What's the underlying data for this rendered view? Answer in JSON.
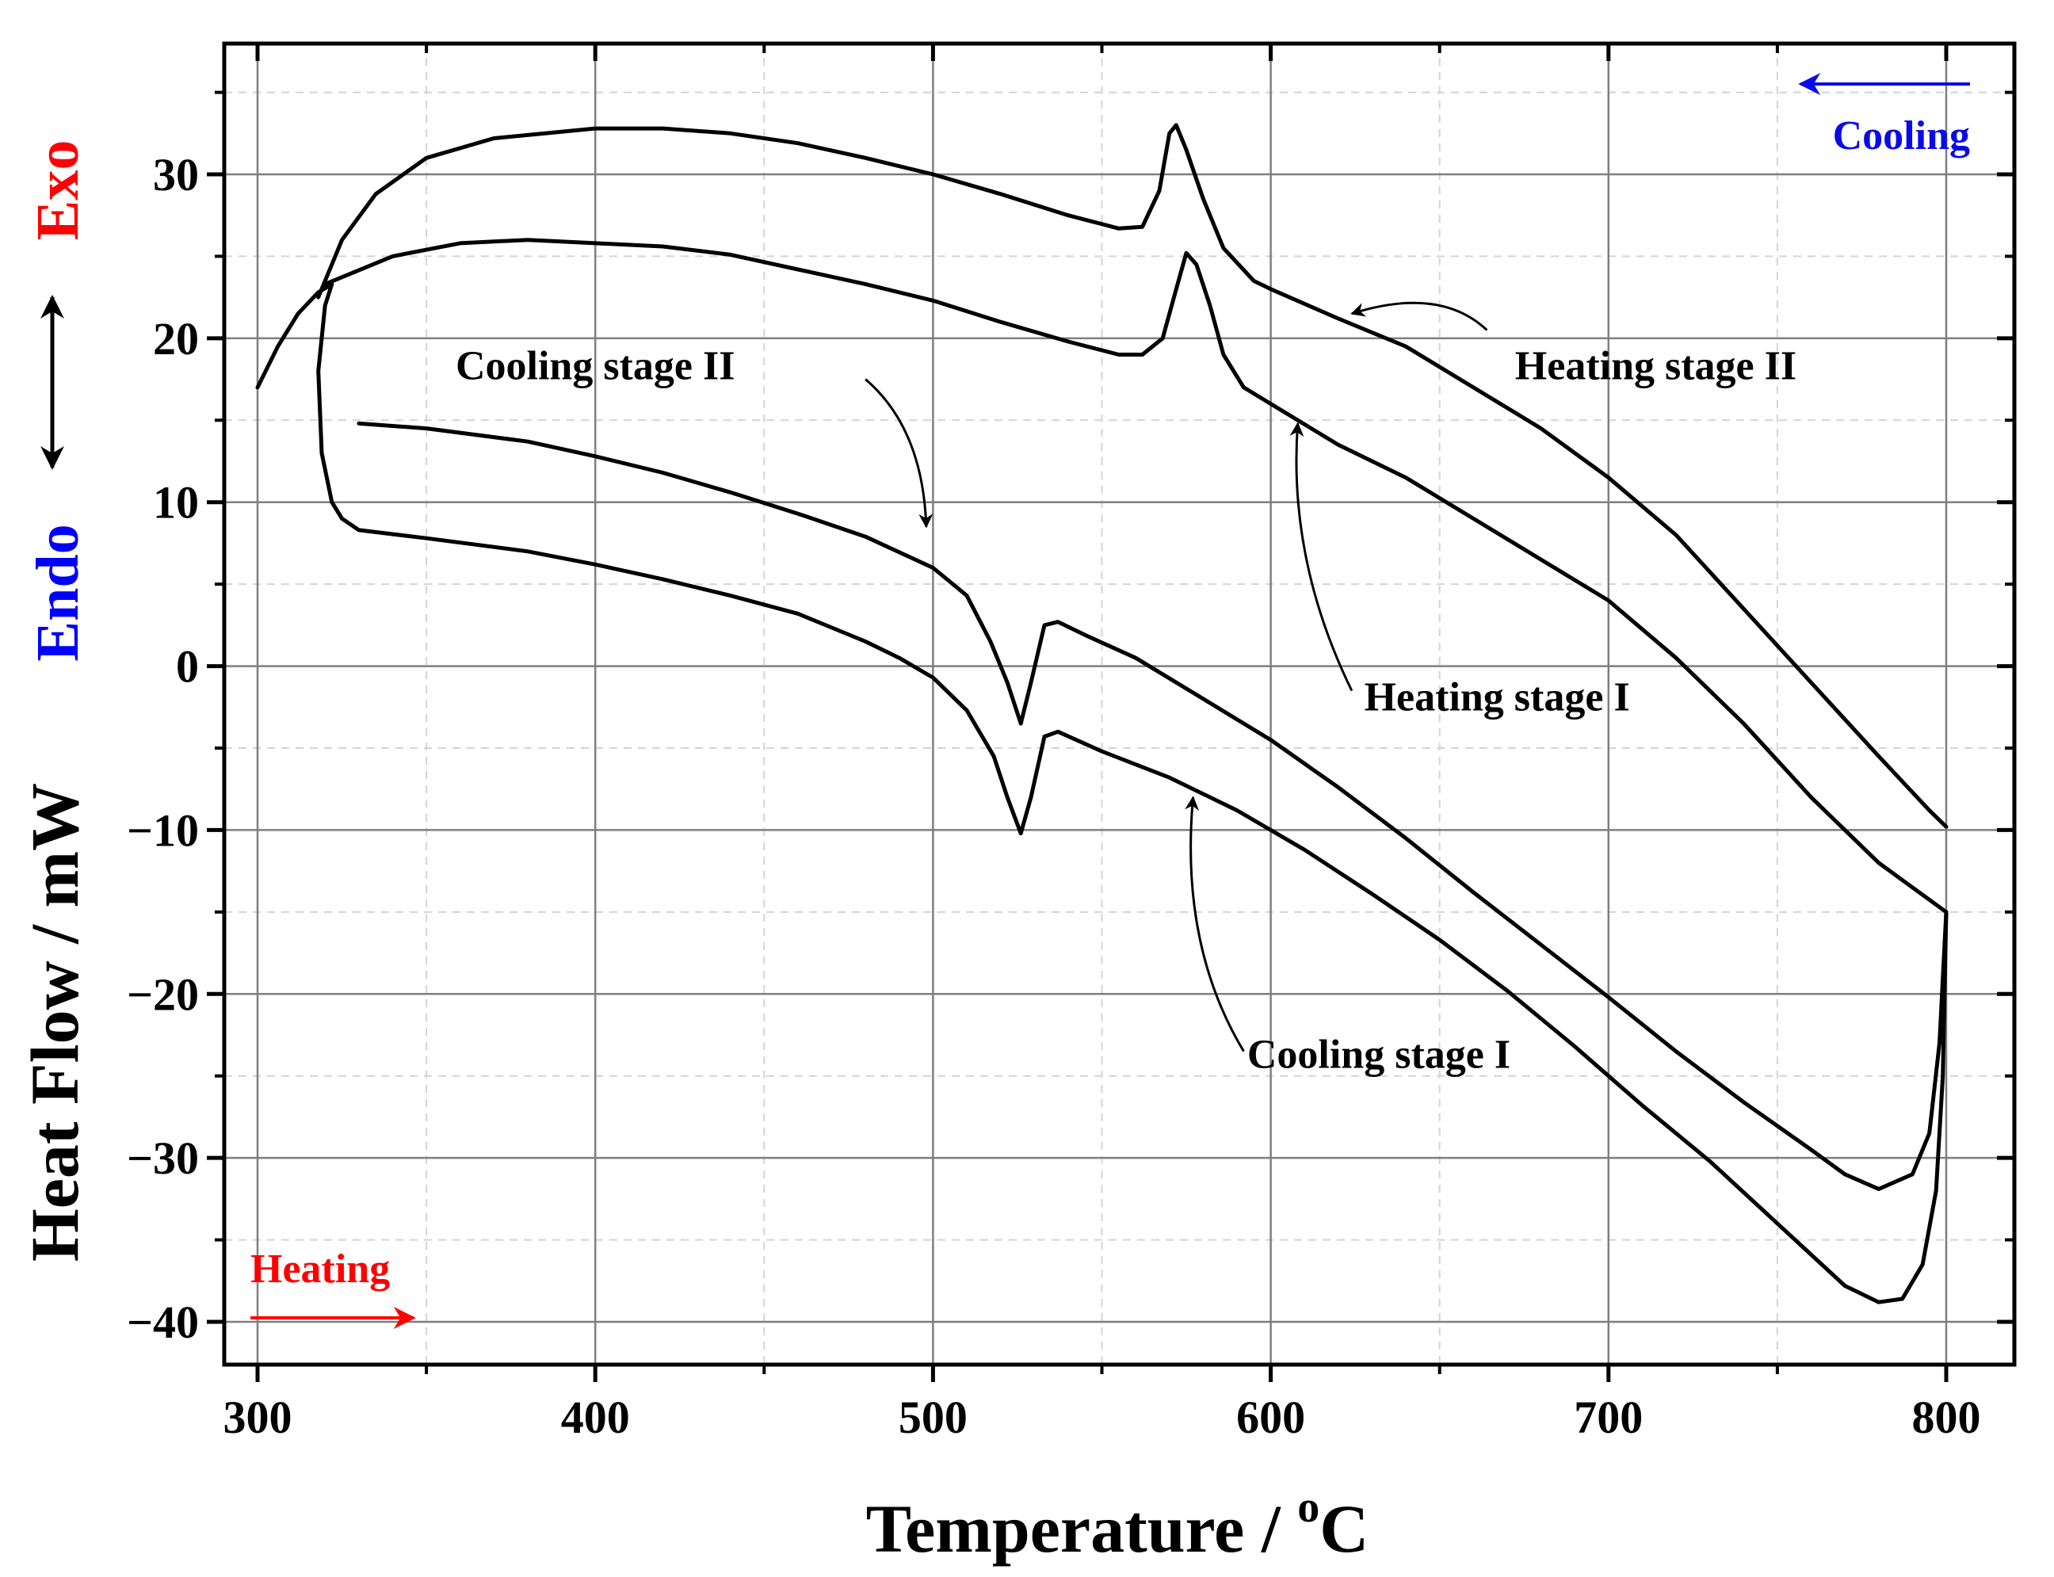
{
  "chart_data": {
    "type": "line",
    "title": "",
    "xlabel": "Temperature / °C",
    "xlabel_main": "Temperature / ",
    "xlabel_sup": "o",
    "xlabel_unit": "C",
    "ylabel": "Heat Flow / mW",
    "xlim": [
      290,
      820
    ],
    "ylim": [
      -42,
      38
    ],
    "xticks": [
      300,
      400,
      500,
      600,
      700,
      800
    ],
    "yticks": [
      30,
      20,
      10,
      0,
      -10,
      -20,
      -30,
      -40
    ],
    "ytick_labels": [
      "30",
      "20",
      "10",
      "0",
      "−10",
      "−20",
      "−30",
      "−40"
    ],
    "grid": true,
    "series": [
      {
        "name": "Cooling stage II",
        "points": [
          [
            330,
            14.8
          ],
          [
            350,
            14.5
          ],
          [
            380,
            13.7
          ],
          [
            400,
            12.8
          ],
          [
            420,
            11.8
          ],
          [
            440,
            10.6
          ],
          [
            460,
            9.3
          ],
          [
            480,
            7.9
          ],
          [
            500,
            6.0
          ],
          [
            510,
            4.3
          ],
          [
            517,
            1.5
          ],
          [
            522,
            -1.0
          ],
          [
            526,
            -3.5
          ],
          [
            529,
            -1.0
          ],
          [
            533,
            2.5
          ],
          [
            537,
            2.7
          ],
          [
            545,
            1.9
          ],
          [
            560,
            0.5
          ],
          [
            580,
            -2.0
          ],
          [
            600,
            -4.5
          ],
          [
            620,
            -7.4
          ],
          [
            640,
            -10.5
          ],
          [
            660,
            -13.8
          ],
          [
            680,
            -17.0
          ],
          [
            700,
            -20.2
          ],
          [
            720,
            -23.5
          ],
          [
            740,
            -26.6
          ],
          [
            760,
            -29.5
          ],
          [
            770,
            -31.0
          ],
          [
            780,
            -31.9
          ],
          [
            790,
            -31.0
          ],
          [
            795,
            -28.5
          ],
          [
            798,
            -23.0
          ],
          [
            800,
            -15.0
          ]
        ]
      },
      {
        "name": "Cooling stage I",
        "points": [
          [
            300,
            17.0
          ],
          [
            306,
            19.5
          ],
          [
            312,
            21.5
          ],
          [
            318,
            22.8
          ],
          [
            322,
            23.3
          ],
          [
            320,
            22.0
          ],
          [
            318,
            18.0
          ],
          [
            319,
            13.0
          ],
          [
            322,
            10.0
          ],
          [
            325,
            9.0
          ],
          [
            330,
            8.3
          ],
          [
            350,
            7.8
          ],
          [
            380,
            7.0
          ],
          [
            400,
            6.2
          ],
          [
            420,
            5.3
          ],
          [
            440,
            4.3
          ],
          [
            460,
            3.2
          ],
          [
            480,
            1.5
          ],
          [
            490,
            0.5
          ],
          [
            500,
            -0.7
          ],
          [
            510,
            -2.7
          ],
          [
            518,
            -5.5
          ],
          [
            522,
            -8.0
          ],
          [
            526,
            -10.2
          ],
          [
            529,
            -8.0
          ],
          [
            533,
            -4.3
          ],
          [
            537,
            -4.0
          ],
          [
            550,
            -5.2
          ],
          [
            570,
            -6.8
          ],
          [
            590,
            -8.8
          ],
          [
            610,
            -11.2
          ],
          [
            630,
            -13.9
          ],
          [
            650,
            -16.7
          ],
          [
            670,
            -19.8
          ],
          [
            690,
            -23.2
          ],
          [
            710,
            -26.8
          ],
          [
            730,
            -30.2
          ],
          [
            750,
            -34.0
          ],
          [
            770,
            -37.8
          ],
          [
            780,
            -38.8
          ],
          [
            787,
            -38.6
          ],
          [
            793,
            -36.5
          ],
          [
            797,
            -32.0
          ],
          [
            799,
            -25.0
          ],
          [
            800,
            -15.0
          ]
        ]
      },
      {
        "name": "Heating stage I",
        "points": [
          [
            320,
            23.3
          ],
          [
            340,
            25.0
          ],
          [
            360,
            25.8
          ],
          [
            380,
            26.0
          ],
          [
            400,
            25.8
          ],
          [
            420,
            25.6
          ],
          [
            440,
            25.1
          ],
          [
            460,
            24.2
          ],
          [
            480,
            23.3
          ],
          [
            500,
            22.3
          ],
          [
            520,
            21.0
          ],
          [
            540,
            19.8
          ],
          [
            555,
            19.0
          ],
          [
            562,
            19.0
          ],
          [
            568,
            20.0
          ],
          [
            572,
            23.0
          ],
          [
            575,
            25.2
          ],
          [
            578,
            24.5
          ],
          [
            582,
            22.0
          ],
          [
            586,
            19.0
          ],
          [
            592,
            17.0
          ],
          [
            600,
            16.0
          ],
          [
            620,
            13.5
          ],
          [
            640,
            11.5
          ],
          [
            660,
            9.0
          ],
          [
            680,
            6.5
          ],
          [
            700,
            4.0
          ],
          [
            720,
            0.5
          ],
          [
            740,
            -3.5
          ],
          [
            760,
            -8.0
          ],
          [
            780,
            -12.0
          ],
          [
            800,
            -15.0
          ]
        ]
      },
      {
        "name": "Heating stage II",
        "points": [
          [
            318,
            22.5
          ],
          [
            325,
            26.0
          ],
          [
            335,
            28.8
          ],
          [
            350,
            31.0
          ],
          [
            370,
            32.2
          ],
          [
            400,
            32.8
          ],
          [
            420,
            32.8
          ],
          [
            440,
            32.5
          ],
          [
            460,
            31.9
          ],
          [
            480,
            31.0
          ],
          [
            500,
            30.0
          ],
          [
            520,
            28.8
          ],
          [
            540,
            27.5
          ],
          [
            555,
            26.7
          ],
          [
            562,
            26.8
          ],
          [
            567,
            29.0
          ],
          [
            570,
            32.5
          ],
          [
            572,
            33.0
          ],
          [
            575,
            31.5
          ],
          [
            580,
            28.5
          ],
          [
            586,
            25.5
          ],
          [
            595,
            23.5
          ],
          [
            600,
            23.0
          ],
          [
            620,
            21.2
          ],
          [
            640,
            19.5
          ],
          [
            660,
            17.0
          ],
          [
            680,
            14.5
          ],
          [
            700,
            11.5
          ],
          [
            720,
            8.0
          ],
          [
            740,
            3.5
          ],
          [
            760,
            -1.0
          ],
          [
            780,
            -5.5
          ],
          [
            795,
            -8.8
          ],
          [
            800,
            -9.8
          ]
        ]
      }
    ],
    "annotations": [
      {
        "text": "Cooling stage II",
        "data_x": 400,
        "data_y": 17.5
      },
      {
        "text": "Heating stage II",
        "data_x": 714,
        "data_y": 17.5
      },
      {
        "text": "Heating stage I",
        "data_x": 667,
        "data_y": -2.7
      },
      {
        "text": "Cooling stage I",
        "data_x": 632,
        "data_y": -24.5
      }
    ],
    "arrows": [
      {
        "tail": [
          480,
          17.5
        ],
        "ctrl": [
          497,
          14.5
        ],
        "head": [
          498,
          8.5
        ]
      },
      {
        "tail": [
          664,
          20.5
        ],
        "ctrl": [
          650,
          23.2
        ],
        "head": [
          624,
          21.5
        ]
      },
      {
        "tail": [
          624,
          -1.5
        ],
        "ctrl": [
          605,
          6.5
        ],
        "head": [
          608,
          14.8
        ]
      },
      {
        "tail": [
          592,
          -23.5
        ],
        "ctrl": [
          573,
          -17.0
        ],
        "head": [
          577,
          -8.0
        ]
      }
    ],
    "direction_labels": {
      "cooling": "Cooling",
      "heating": "Heating",
      "cooling_color": "#0a0ae8",
      "heating_color": "#ff0000"
    },
    "side_labels": {
      "exo": "Exo",
      "endo": "Endo",
      "exo_color": "#ff0000",
      "endo_color": "#0000ff"
    }
  }
}
